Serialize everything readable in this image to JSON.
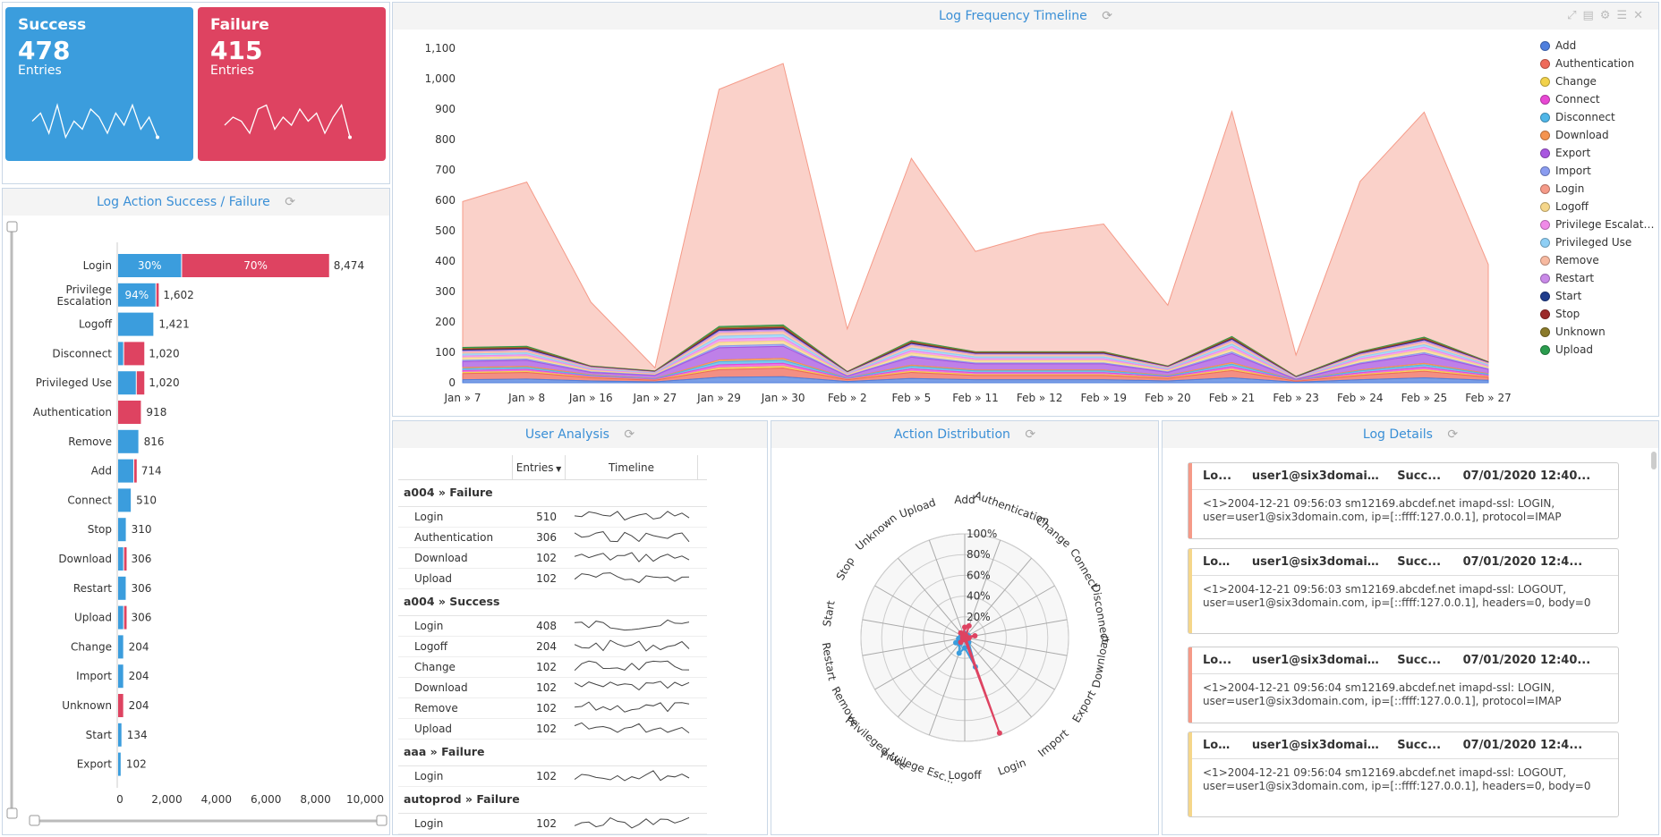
{
  "kpis": {
    "success": {
      "title": "Success",
      "value": "478",
      "sub": "Entries",
      "color": "#3b9ddd",
      "spark": [
        0.5,
        0.7,
        0.2,
        0.9,
        0.1,
        0.5,
        0.3,
        0.8,
        0.6,
        0.2,
        0.7,
        0.4,
        0.9,
        0.3,
        0.6,
        0.1
      ]
    },
    "failure": {
      "title": "Failure",
      "value": "415",
      "sub": "Entries",
      "color": "#de4361",
      "spark": [
        0.4,
        0.6,
        0.5,
        0.2,
        0.8,
        0.9,
        0.3,
        0.6,
        0.4,
        0.8,
        0.5,
        0.7,
        0.2,
        0.6,
        0.9,
        0.1
      ]
    }
  },
  "action_chart": {
    "title": "Log Action Success / Failure",
    "chart_data": {
      "type": "bar",
      "categories": [
        "Login",
        "Privilege Escalation",
        "Logoff",
        "Disconnect",
        "Privileged Use",
        "Authentication",
        "Remove",
        "Add",
        "Connect",
        "Stop",
        "Download",
        "Restart",
        "Upload",
        "Change",
        "Import",
        "Unknown",
        "Start",
        "Export"
      ],
      "series": [
        {
          "name": "Success",
          "values": [
            2542,
            1506,
            1421,
            204,
            714,
            0,
            816,
            612,
            510,
            310,
            204,
            306,
            204,
            204,
            204,
            0,
            134,
            102
          ]
        },
        {
          "name": "Failure",
          "values": [
            5932,
            96,
            0,
            816,
            306,
            918,
            0,
            102,
            0,
            0,
            102,
            0,
            102,
            0,
            0,
            204,
            0,
            0
          ]
        }
      ],
      "totals": [
        "8,474",
        "1,602",
        "1,421",
        "1,020",
        "1,020",
        "918",
        "816",
        "714",
        "510",
        "310",
        "306",
        "306",
        "306",
        "204",
        "204",
        "204",
        "134",
        "102"
      ],
      "bar_labels": [
        {
          "success": "30%",
          "failure": "70%"
        },
        {
          "success": "94%",
          "failure": ""
        }
      ],
      "xticks": [
        "0",
        "2,000",
        "4,000",
        "6,000",
        "8,000",
        "10,000"
      ],
      "xlim": [
        0,
        10000
      ]
    }
  },
  "timeline": {
    "title": "Log Frequency Timeline",
    "chart_data": {
      "type": "area",
      "x": [
        "Jan » 7",
        "Jan » 8",
        "Jan » 16",
        "Jan » 27",
        "Jan » 29",
        "Jan » 30",
        "Feb » 2",
        "Feb » 5",
        "Feb » 11",
        "Feb » 12",
        "Feb » 19",
        "Feb » 20",
        "Feb » 21",
        "Feb » 23",
        "Feb » 24",
        "Feb » 25",
        "Feb » 27"
      ],
      "yticks": [
        "0",
        "100",
        "200",
        "300",
        "400",
        "500",
        "600",
        "700",
        "800",
        "900",
        "1,000",
        "1,100"
      ],
      "ylim": [
        0,
        1100
      ],
      "series": [
        {
          "name": "Add",
          "color": "#4f7fde",
          "values": [
            10,
            12,
            6,
            3,
            18,
            20,
            4,
            14,
            10,
            10,
            10,
            6,
            16,
            2,
            10,
            16,
            8
          ]
        },
        {
          "name": "Authentication",
          "color": "#ef6a5a",
          "values": [
            20,
            22,
            10,
            5,
            25,
            28,
            6,
            20,
            14,
            14,
            14,
            8,
            24,
            3,
            14,
            22,
            10
          ]
        },
        {
          "name": "Change",
          "color": "#f2d24b",
          "values": [
            4,
            4,
            2,
            1,
            6,
            6,
            1,
            4,
            3,
            3,
            3,
            2,
            5,
            1,
            3,
            5,
            2
          ]
        },
        {
          "name": "Connect",
          "color": "#e848d4",
          "values": [
            6,
            6,
            3,
            2,
            10,
            10,
            2,
            8,
            6,
            6,
            6,
            3,
            8,
            1,
            6,
            8,
            4
          ]
        },
        {
          "name": "Disconnect",
          "color": "#4fb6e8",
          "values": [
            6,
            6,
            3,
            2,
            10,
            10,
            2,
            8,
            6,
            6,
            6,
            3,
            8,
            1,
            6,
            8,
            4
          ]
        },
        {
          "name": "Download",
          "color": "#f5944f",
          "values": [
            4,
            4,
            2,
            1,
            6,
            6,
            1,
            4,
            3,
            3,
            3,
            2,
            5,
            1,
            3,
            5,
            2
          ]
        },
        {
          "name": "Export",
          "color": "#a856e0",
          "values": [
            20,
            20,
            8,
            10,
            40,
            40,
            6,
            26,
            20,
            20,
            20,
            10,
            30,
            2,
            20,
            30,
            14
          ]
        },
        {
          "name": "Import",
          "color": "#8a9cf0",
          "values": [
            4,
            4,
            2,
            1,
            6,
            6,
            1,
            4,
            3,
            3,
            3,
            2,
            5,
            1,
            3,
            5,
            2
          ]
        },
        {
          "name": "Login",
          "color": "#f59a88",
          "values": [
            480,
            540,
            210,
            10,
            780,
            860,
            140,
            600,
            330,
            390,
            420,
            200,
            740,
            70,
            560,
            740,
            320
          ]
        },
        {
          "name": "Logoff",
          "color": "#f5d68a",
          "values": [
            8,
            8,
            4,
            3,
            12,
            12,
            3,
            10,
            8,
            8,
            8,
            4,
            10,
            1,
            8,
            10,
            5
          ]
        },
        {
          "name": "Privilege Escalation",
          "color": "#f08ae8",
          "values": [
            6,
            6,
            3,
            2,
            10,
            10,
            2,
            8,
            6,
            6,
            6,
            3,
            8,
            1,
            6,
            8,
            4
          ]
        },
        {
          "name": "Privileged Use",
          "color": "#8fcff5",
          "values": [
            6,
            6,
            3,
            2,
            10,
            10,
            2,
            8,
            6,
            6,
            6,
            3,
            8,
            1,
            6,
            8,
            4
          ]
        },
        {
          "name": "Remove",
          "color": "#f7b9a0",
          "values": [
            6,
            6,
            3,
            2,
            10,
            10,
            2,
            8,
            6,
            6,
            6,
            3,
            8,
            1,
            6,
            8,
            4
          ]
        },
        {
          "name": "Restart",
          "color": "#c98ae8",
          "values": [
            4,
            4,
            2,
            1,
            6,
            6,
            1,
            4,
            3,
            3,
            3,
            2,
            5,
            1,
            3,
            5,
            2
          ]
        },
        {
          "name": "Start",
          "color": "#1f3c8c",
          "values": [
            3,
            3,
            1,
            1,
            4,
            4,
            1,
            3,
            2,
            2,
            2,
            1,
            3,
            1,
            2,
            3,
            1
          ]
        },
        {
          "name": "Stop",
          "color": "#9c2b2b",
          "values": [
            3,
            3,
            1,
            1,
            4,
            4,
            1,
            3,
            2,
            2,
            2,
            1,
            3,
            1,
            2,
            3,
            1
          ]
        },
        {
          "name": "Unknown",
          "color": "#8a7a2a",
          "values": [
            3,
            3,
            1,
            1,
            4,
            4,
            1,
            3,
            2,
            2,
            2,
            1,
            3,
            1,
            2,
            3,
            1
          ]
        },
        {
          "name": "Upload",
          "color": "#2a9c4e",
          "values": [
            3,
            3,
            1,
            1,
            4,
            4,
            1,
            3,
            2,
            2,
            2,
            1,
            3,
            1,
            2,
            3,
            1
          ]
        }
      ]
    }
  },
  "user_analysis": {
    "title": "User Analysis",
    "col_entries": "Entries",
    "col_timeline": "Timeline",
    "groups": [
      {
        "label": "a004 » Failure",
        "rows": [
          [
            "Login",
            "510"
          ],
          [
            "Authentication",
            "306"
          ],
          [
            "Download",
            "102"
          ],
          [
            "Upload",
            "102"
          ]
        ]
      },
      {
        "label": "a004 » Success",
        "rows": [
          [
            "Login",
            "408"
          ],
          [
            "Logoff",
            "204"
          ],
          [
            "Change",
            "102"
          ],
          [
            "Download",
            "102"
          ],
          [
            "Remove",
            "102"
          ],
          [
            "Upload",
            "102"
          ]
        ]
      },
      {
        "label": "aaa » Failure",
        "rows": [
          [
            "Login",
            "102"
          ]
        ]
      },
      {
        "label": "autoprod » Failure",
        "rows": [
          [
            "Login",
            "102"
          ]
        ]
      }
    ]
  },
  "action_distribution": {
    "title": "Action Distribution",
    "chart_data": {
      "type": "radar",
      "axes": [
        "Add",
        "Authentication",
        "Change",
        "Connect",
        "Disconnect",
        "Download",
        "Export",
        "Import",
        "Login",
        "Logoff",
        "Privilege Esc...",
        "Privileged Use",
        "Remove",
        "Restart",
        "Start",
        "Stop",
        "Unknown",
        "Upload"
      ],
      "ticks": [
        "20%",
        "40%",
        "60%",
        "80%",
        "100%"
      ],
      "series": [
        {
          "name": "Success",
          "color": "#3b9ddd",
          "values": [
            0.04,
            0.02,
            0.03,
            0.04,
            0.02,
            0.03,
            0.03,
            0.06,
            0.3,
            0.1,
            0.16,
            0.08,
            0.1,
            0.06,
            0.04,
            0.04,
            0.02,
            0.04
          ]
        },
        {
          "name": "Failure",
          "color": "#de4361",
          "values": [
            0.1,
            0.12,
            0.02,
            0.02,
            0.1,
            0.04,
            0.02,
            0.02,
            0.98,
            0.02,
            0.02,
            0.06,
            0.02,
            0.02,
            0.02,
            0.02,
            0.06,
            0.04
          ]
        }
      ]
    }
  },
  "log_details": {
    "title": "Log Details",
    "cards": [
      {
        "type": "Lo...",
        "user": "user1@six3domain.c...",
        "status": "Succ...",
        "time": "07/01/2020 12:40...",
        "msg": "<1>2004-12-21 09:56:03 sm12169.abcdef.net imapd-ssl: LOGIN, user=user1@six3domain.com, ip=[::ffff:127.0.0.1], protocol=IMAP",
        "stripe": "#f59a88"
      },
      {
        "type": "Log...",
        "user": "user1@six3domain....",
        "status": "Succ...",
        "time": "07/01/2020 12:4...",
        "msg": "<1>2004-12-21 09:56:03 sm12169.abcdef.net imapd-ssl: LOGOUT, user=user1@six3domain.com, ip=[::ffff:127.0.0.1], headers=0, body=0",
        "stripe": "#f5d68a"
      },
      {
        "type": "Lo...",
        "user": "user1@six3domain.c...",
        "status": "Succ...",
        "time": "07/01/2020 12:40...",
        "msg": "<1>2004-12-21 09:56:04 sm12169.abcdef.net imapd-ssl: LOGIN, user=user1@six3domain.com, ip=[::ffff:127.0.0.1], protocol=IMAP",
        "stripe": "#f59a88"
      },
      {
        "type": "Log...",
        "user": "user1@six3domain....",
        "status": "Succ...",
        "time": "07/01/2020 12:4...",
        "msg": "<1>2004-12-21 09:56:04 sm12169.abcdef.net imapd-ssl: LOGOUT, user=user1@six3domain.com, ip=[::ffff:127.0.0.1], headers=0, body=0",
        "stripe": "#f5d68a"
      }
    ]
  }
}
